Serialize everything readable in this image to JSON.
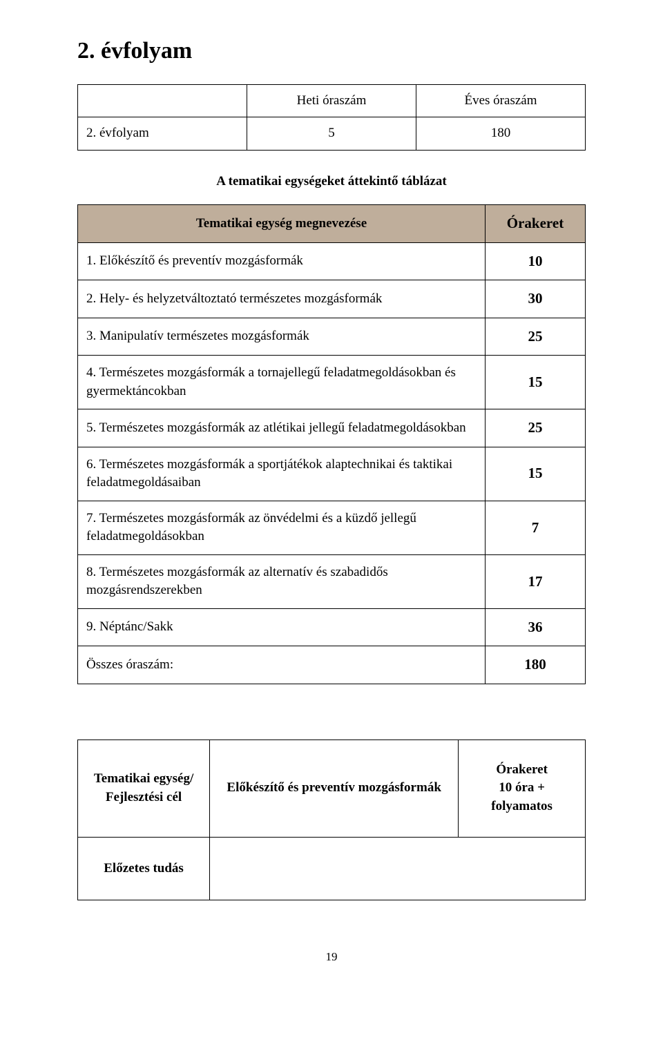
{
  "title": "2. évfolyam",
  "hour_table": {
    "headers": [
      "",
      "Heti óraszám",
      "Éves óraszám"
    ],
    "row": {
      "label": "2. évfolyam",
      "weekly": "5",
      "yearly": "180"
    }
  },
  "subtitle": "A tematikai egységeket áttekintő táblázat",
  "topic_table": {
    "header_left": "Tematikai egység megnevezése",
    "header_right": "Órakeret",
    "header_bg": "#bfae9b",
    "rows": [
      {
        "label": "1. Előkészítő és preventív mozgásformák",
        "value": "10"
      },
      {
        "label": "2. Hely- és helyzetváltoztató természetes mozgásformák",
        "value": "30"
      },
      {
        "label": "3. Manipulatív természetes mozgásformák",
        "value": "25"
      },
      {
        "label": "4. Természetes mozgásformák a tornajellegű feladatmegoldásokban és gyermektáncokban",
        "value": "15"
      },
      {
        "label": "5. Természetes mozgásformák az atlétikai jellegű feladatmegoldásokban",
        "value": "25"
      },
      {
        "label": "6. Természetes mozgásformák a sportjátékok alaptechnikai és taktikai feladatmegoldásaiban",
        "value": "15"
      },
      {
        "label": "7. Természetes mozgásformák az önvédelmi és a küzdő jellegű feladatmegoldásokban",
        "value": "7"
      },
      {
        "label": "8. Természetes mozgásformák az alternatív és szabadidős mozgásrendszerekben",
        "value": "17"
      },
      {
        "label": "9. Néptánc/Sakk",
        "value": "36"
      },
      {
        "label": "Összes óraszám:",
        "value": "180"
      }
    ]
  },
  "bottom_table": {
    "left_line1": "Tematikai egység/",
    "left_line2": "Fejlesztési cél",
    "mid": "Előkészítő és preventív mozgásformák",
    "right_line1": "Órakeret",
    "right_line2": "10 óra +",
    "right_line3": "folyamatos",
    "prev": "Előzetes tudás"
  },
  "page_number": "19"
}
